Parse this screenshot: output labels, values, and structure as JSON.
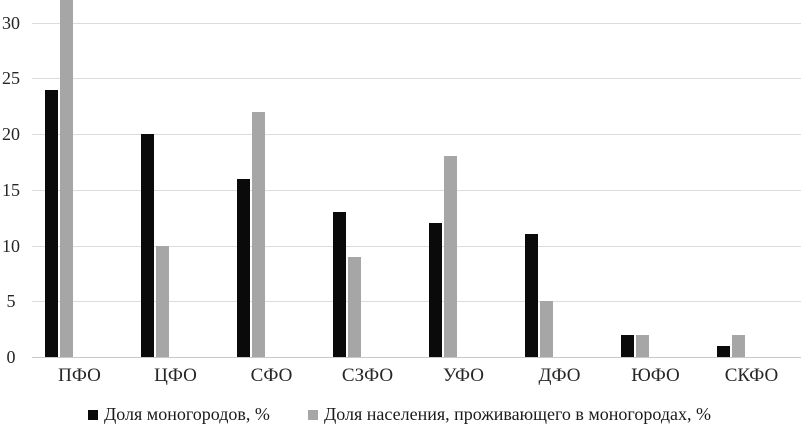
{
  "chart_data": {
    "type": "bar",
    "title": "",
    "xlabel": "",
    "ylabel": "",
    "categories": [
      "ПФО",
      "ЦФО",
      "СФО",
      "СЗФО",
      "УФО",
      "ДФО",
      "ЮФО",
      "СКФО"
    ],
    "series": [
      {
        "name": "Доля моногородов, %",
        "color": "#0a0a0a",
        "values": [
          24,
          20,
          16,
          13,
          12,
          11,
          2,
          1
        ]
      },
      {
        "name": "Доля населения, проживающего в моногородах, %",
        "color": "#a6a6a6",
        "values": [
          32,
          10,
          22,
          9,
          18,
          5,
          2,
          2
        ]
      }
    ],
    "yticks": [
      0,
      5,
      10,
      15,
      20,
      25,
      30
    ],
    "ylim": [
      0,
      32
    ],
    "grid": "horizontal",
    "legend_position": "bottom",
    "note": "Top of first category (ПФО) gray bar is clipped by the upper edge of the image"
  },
  "colors": {
    "series1": "#0a0a0a",
    "series2": "#a6a6a6",
    "gridline": "#dcdcdc",
    "axis_line": "#c8c8c8",
    "text": "#262626"
  }
}
